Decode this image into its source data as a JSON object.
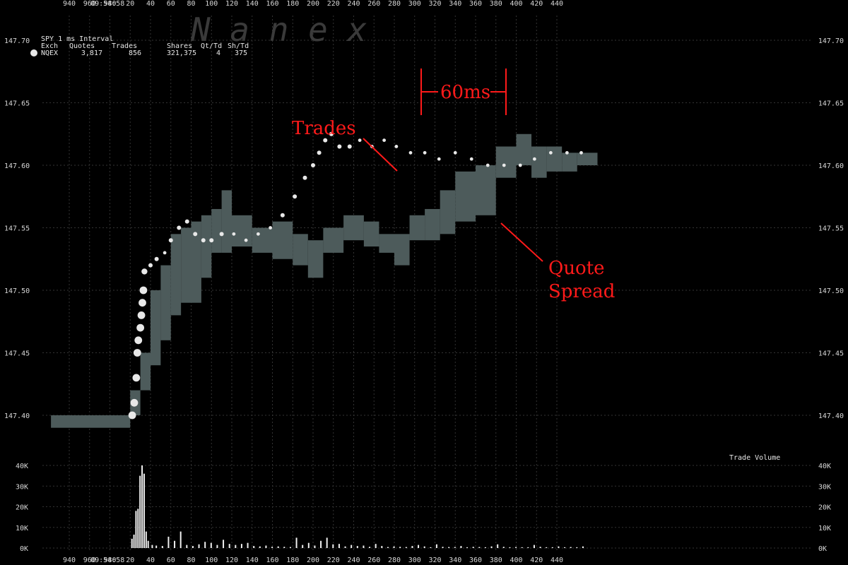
{
  "chart_data": {
    "type": "scatter",
    "subtitle": "SPY 1 ms Interval",
    "watermark": "N a n e x",
    "timestamp_label": "09:54:58",
    "stats": {
      "headers": [
        "Exch",
        "Quotes",
        "Trades",
        "Shares",
        "Qt/Td",
        "Sh/Td"
      ],
      "row": [
        "NQEX",
        "3,817",
        "856",
        "321,375",
        "4",
        "375"
      ]
    },
    "x_ticks": [
      "940",
      "960",
      "980",
      "20",
      "40",
      "60",
      "80",
      "100",
      "120",
      "140",
      "160",
      "180",
      "200",
      "220",
      "240",
      "260",
      "280",
      "300",
      "320",
      "340",
      "360",
      "380",
      "400",
      "420",
      "440"
    ],
    "x_range_ms": [
      920,
      1460
    ],
    "y_ticks": [
      "147.70",
      "147.65",
      "147.60",
      "147.55",
      "147.50",
      "147.45",
      "147.40"
    ],
    "ylim": [
      147.385,
      147.71
    ],
    "volume_ticks": [
      "40K",
      "30K",
      "20K",
      "10K",
      "0K"
    ],
    "volume_ylim": [
      0,
      40000
    ],
    "volume_label": "Trade Volume",
    "annotations": {
      "trades": "Trades",
      "quote_spread_line1": "Quote",
      "quote_spread_line2": "Spread",
      "interval": "60ms"
    },
    "colors": {
      "spread": "#4d5b5b",
      "trade": "#e8e8e8",
      "grid": "#333333",
      "annotation": "#ff1a1a"
    },
    "quote_spread": [
      [
        922,
        1000,
        147.39,
        147.4
      ],
      [
        1000,
        1010,
        147.4,
        147.42
      ],
      [
        1010,
        1020,
        147.42,
        147.45
      ],
      [
        1020,
        1030,
        147.44,
        147.5
      ],
      [
        1030,
        1040,
        147.46,
        147.52
      ],
      [
        1040,
        1050,
        147.48,
        147.545
      ],
      [
        1050,
        1060,
        147.49,
        147.55
      ],
      [
        1060,
        1070,
        147.49,
        147.555
      ],
      [
        1070,
        1080,
        147.51,
        147.56
      ],
      [
        1080,
        1090,
        147.53,
        147.565
      ],
      [
        1090,
        1100,
        147.53,
        147.58
      ],
      [
        1100,
        1120,
        147.535,
        147.56
      ],
      [
        1120,
        1140,
        147.53,
        147.55
      ],
      [
        1140,
        1160,
        147.525,
        147.555
      ],
      [
        1160,
        1175,
        147.52,
        147.545
      ],
      [
        1175,
        1190,
        147.51,
        147.54
      ],
      [
        1190,
        1210,
        147.53,
        147.55
      ],
      [
        1210,
        1230,
        147.54,
        147.56
      ],
      [
        1230,
        1245,
        147.535,
        147.555
      ],
      [
        1245,
        1260,
        147.53,
        147.545
      ],
      [
        1260,
        1275,
        147.52,
        147.545
      ],
      [
        1275,
        1290,
        147.54,
        147.56
      ],
      [
        1290,
        1305,
        147.54,
        147.565
      ],
      [
        1305,
        1320,
        147.545,
        147.58
      ],
      [
        1320,
        1340,
        147.555,
        147.595
      ],
      [
        1340,
        1360,
        147.56,
        147.6
      ],
      [
        1360,
        1380,
        147.59,
        147.615
      ],
      [
        1380,
        1395,
        147.6,
        147.625
      ],
      [
        1395,
        1410,
        147.59,
        147.615
      ],
      [
        1410,
        1425,
        147.595,
        147.615
      ],
      [
        1425,
        1440,
        147.595,
        147.61
      ],
      [
        1440,
        1460,
        147.6,
        147.61
      ]
    ],
    "trades": [
      [
        1002,
        147.4,
        9
      ],
      [
        1004,
        147.41,
        9
      ],
      [
        1006,
        147.43,
        9
      ],
      [
        1007,
        147.45,
        9
      ],
      [
        1008,
        147.46,
        9
      ],
      [
        1010,
        147.47,
        9
      ],
      [
        1011,
        147.48,
        9
      ],
      [
        1012,
        147.49,
        9
      ],
      [
        1013,
        147.5,
        9
      ],
      [
        1014,
        147.515,
        7
      ],
      [
        1020,
        147.52,
        5
      ],
      [
        1026,
        147.525,
        5
      ],
      [
        1034,
        147.53,
        4
      ],
      [
        1040,
        147.54,
        5
      ],
      [
        1048,
        147.55,
        5
      ],
      [
        1056,
        147.555,
        5
      ],
      [
        1064,
        147.545,
        5
      ],
      [
        1072,
        147.54,
        5
      ],
      [
        1080,
        147.54,
        5
      ],
      [
        1090,
        147.545,
        5
      ],
      [
        1102,
        147.545,
        4
      ],
      [
        1114,
        147.54,
        4
      ],
      [
        1126,
        147.545,
        4
      ],
      [
        1138,
        147.55,
        4
      ],
      [
        1150,
        147.56,
        5
      ],
      [
        1162,
        147.575,
        5
      ],
      [
        1172,
        147.59,
        5
      ],
      [
        1180,
        147.6,
        5
      ],
      [
        1186,
        147.61,
        5
      ],
      [
        1192,
        147.62,
        5
      ],
      [
        1198,
        147.625,
        5
      ],
      [
        1206,
        147.615,
        5
      ],
      [
        1216,
        147.615,
        5
      ],
      [
        1226,
        147.62,
        4
      ],
      [
        1238,
        147.615,
        4
      ],
      [
        1250,
        147.62,
        4
      ],
      [
        1262,
        147.615,
        4
      ],
      [
        1276,
        147.61,
        4
      ],
      [
        1290,
        147.61,
        4
      ],
      [
        1304,
        147.605,
        4
      ],
      [
        1320,
        147.61,
        4
      ],
      [
        1336,
        147.605,
        4
      ],
      [
        1352,
        147.6,
        4
      ],
      [
        1368,
        147.6,
        4
      ],
      [
        1384,
        147.6,
        4
      ],
      [
        1398,
        147.605,
        4
      ],
      [
        1414,
        147.61,
        4
      ],
      [
        1430,
        147.61,
        4
      ],
      [
        1444,
        147.61,
        4
      ]
    ],
    "volume": [
      [
        1001,
        4500
      ],
      [
        1003,
        6500
      ],
      [
        1005,
        18000
      ],
      [
        1007,
        19000
      ],
      [
        1009,
        35000
      ],
      [
        1011,
        40000
      ],
      [
        1013,
        36000
      ],
      [
        1015,
        8000
      ],
      [
        1017,
        3500
      ],
      [
        1021,
        1500
      ],
      [
        1025,
        1200
      ],
      [
        1031,
        1000
      ],
      [
        1037,
        5500
      ],
      [
        1043,
        3500
      ],
      [
        1049,
        8000
      ],
      [
        1055,
        1500
      ],
      [
        1061,
        1000
      ],
      [
        1067,
        1800
      ],
      [
        1073,
        3000
      ],
      [
        1079,
        2500
      ],
      [
        1085,
        1500
      ],
      [
        1091,
        4000
      ],
      [
        1097,
        2000
      ],
      [
        1103,
        1500
      ],
      [
        1109,
        2000
      ],
      [
        1115,
        2500
      ],
      [
        1121,
        1000
      ],
      [
        1127,
        800
      ],
      [
        1133,
        1200
      ],
      [
        1139,
        600
      ],
      [
        1145,
        800
      ],
      [
        1151,
        600
      ],
      [
        1157,
        500
      ],
      [
        1163,
        5000
      ],
      [
        1169,
        1500
      ],
      [
        1175,
        2500
      ],
      [
        1181,
        1200
      ],
      [
        1187,
        3500
      ],
      [
        1193,
        5000
      ],
      [
        1199,
        1800
      ],
      [
        1205,
        2000
      ],
      [
        1211,
        800
      ],
      [
        1217,
        1500
      ],
      [
        1223,
        1000
      ],
      [
        1229,
        1200
      ],
      [
        1235,
        600
      ],
      [
        1241,
        2000
      ],
      [
        1247,
        1000
      ],
      [
        1253,
        500
      ],
      [
        1259,
        800
      ],
      [
        1265,
        600
      ],
      [
        1271,
        500
      ],
      [
        1277,
        1000
      ],
      [
        1283,
        1500
      ],
      [
        1289,
        800
      ],
      [
        1295,
        400
      ],
      [
        1301,
        1800
      ],
      [
        1307,
        600
      ],
      [
        1313,
        500
      ],
      [
        1319,
        500
      ],
      [
        1325,
        1000
      ],
      [
        1331,
        400
      ],
      [
        1337,
        600
      ],
      [
        1343,
        500
      ],
      [
        1349,
        400
      ],
      [
        1355,
        800
      ],
      [
        1361,
        1800
      ],
      [
        1367,
        600
      ],
      [
        1373,
        400
      ],
      [
        1379,
        500
      ],
      [
        1385,
        400
      ],
      [
        1391,
        400
      ],
      [
        1397,
        1500
      ],
      [
        1403,
        600
      ],
      [
        1409,
        400
      ],
      [
        1415,
        400
      ],
      [
        1421,
        800
      ],
      [
        1427,
        400
      ],
      [
        1433,
        500
      ],
      [
        1439,
        400
      ],
      [
        1445,
        800
      ]
    ]
  }
}
